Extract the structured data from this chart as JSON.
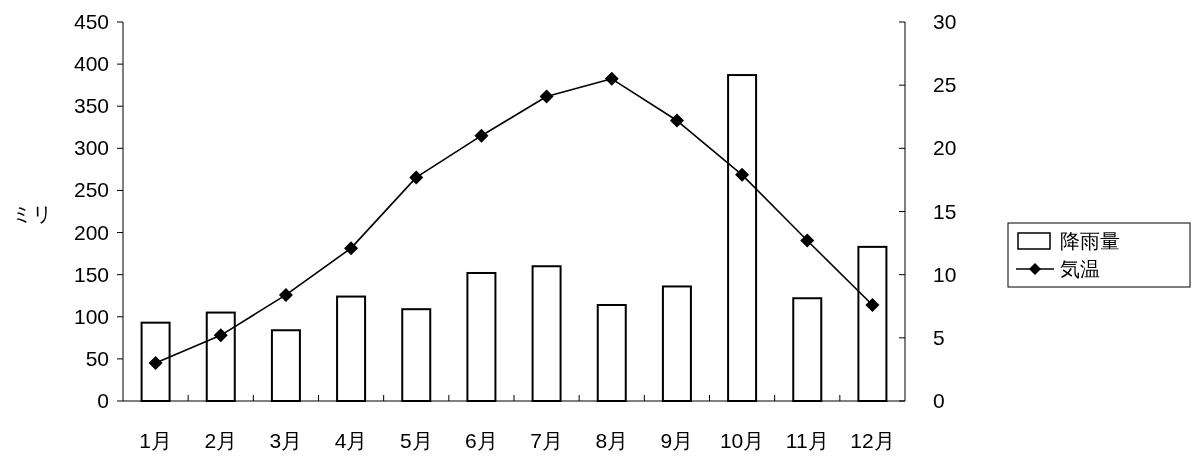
{
  "chart_data": {
    "type": "bar",
    "categories": [
      "1月",
      "2月",
      "3月",
      "4月",
      "5月",
      "6月",
      "7月",
      "8月",
      "9月",
      "10月",
      "11月",
      "12月"
    ],
    "series": [
      {
        "name": "降雨量",
        "color": "#ffffff",
        "values": [
          93,
          105,
          84,
          124,
          109,
          152,
          160,
          114,
          136,
          387,
          122,
          183
        ]
      },
      {
        "name": "気温",
        "type": "line",
        "axis": "y2",
        "color": "#000000",
        "marker": "diamond",
        "values": [
          3.0,
          5.2,
          8.4,
          12.1,
          17.7,
          21.0,
          24.1,
          25.5,
          22.2,
          17.9,
          12.7,
          7.6
        ]
      }
    ],
    "ylabel": "ミリ",
    "ylim": [
      0,
      450
    ],
    "yticks": [
      0,
      50,
      100,
      150,
      200,
      250,
      300,
      350,
      400,
      450
    ],
    "y2lim": [
      0,
      30
    ],
    "y2ticks": [
      0,
      5,
      10,
      15,
      20,
      25,
      30
    ],
    "legend": "right",
    "grid": false
  }
}
